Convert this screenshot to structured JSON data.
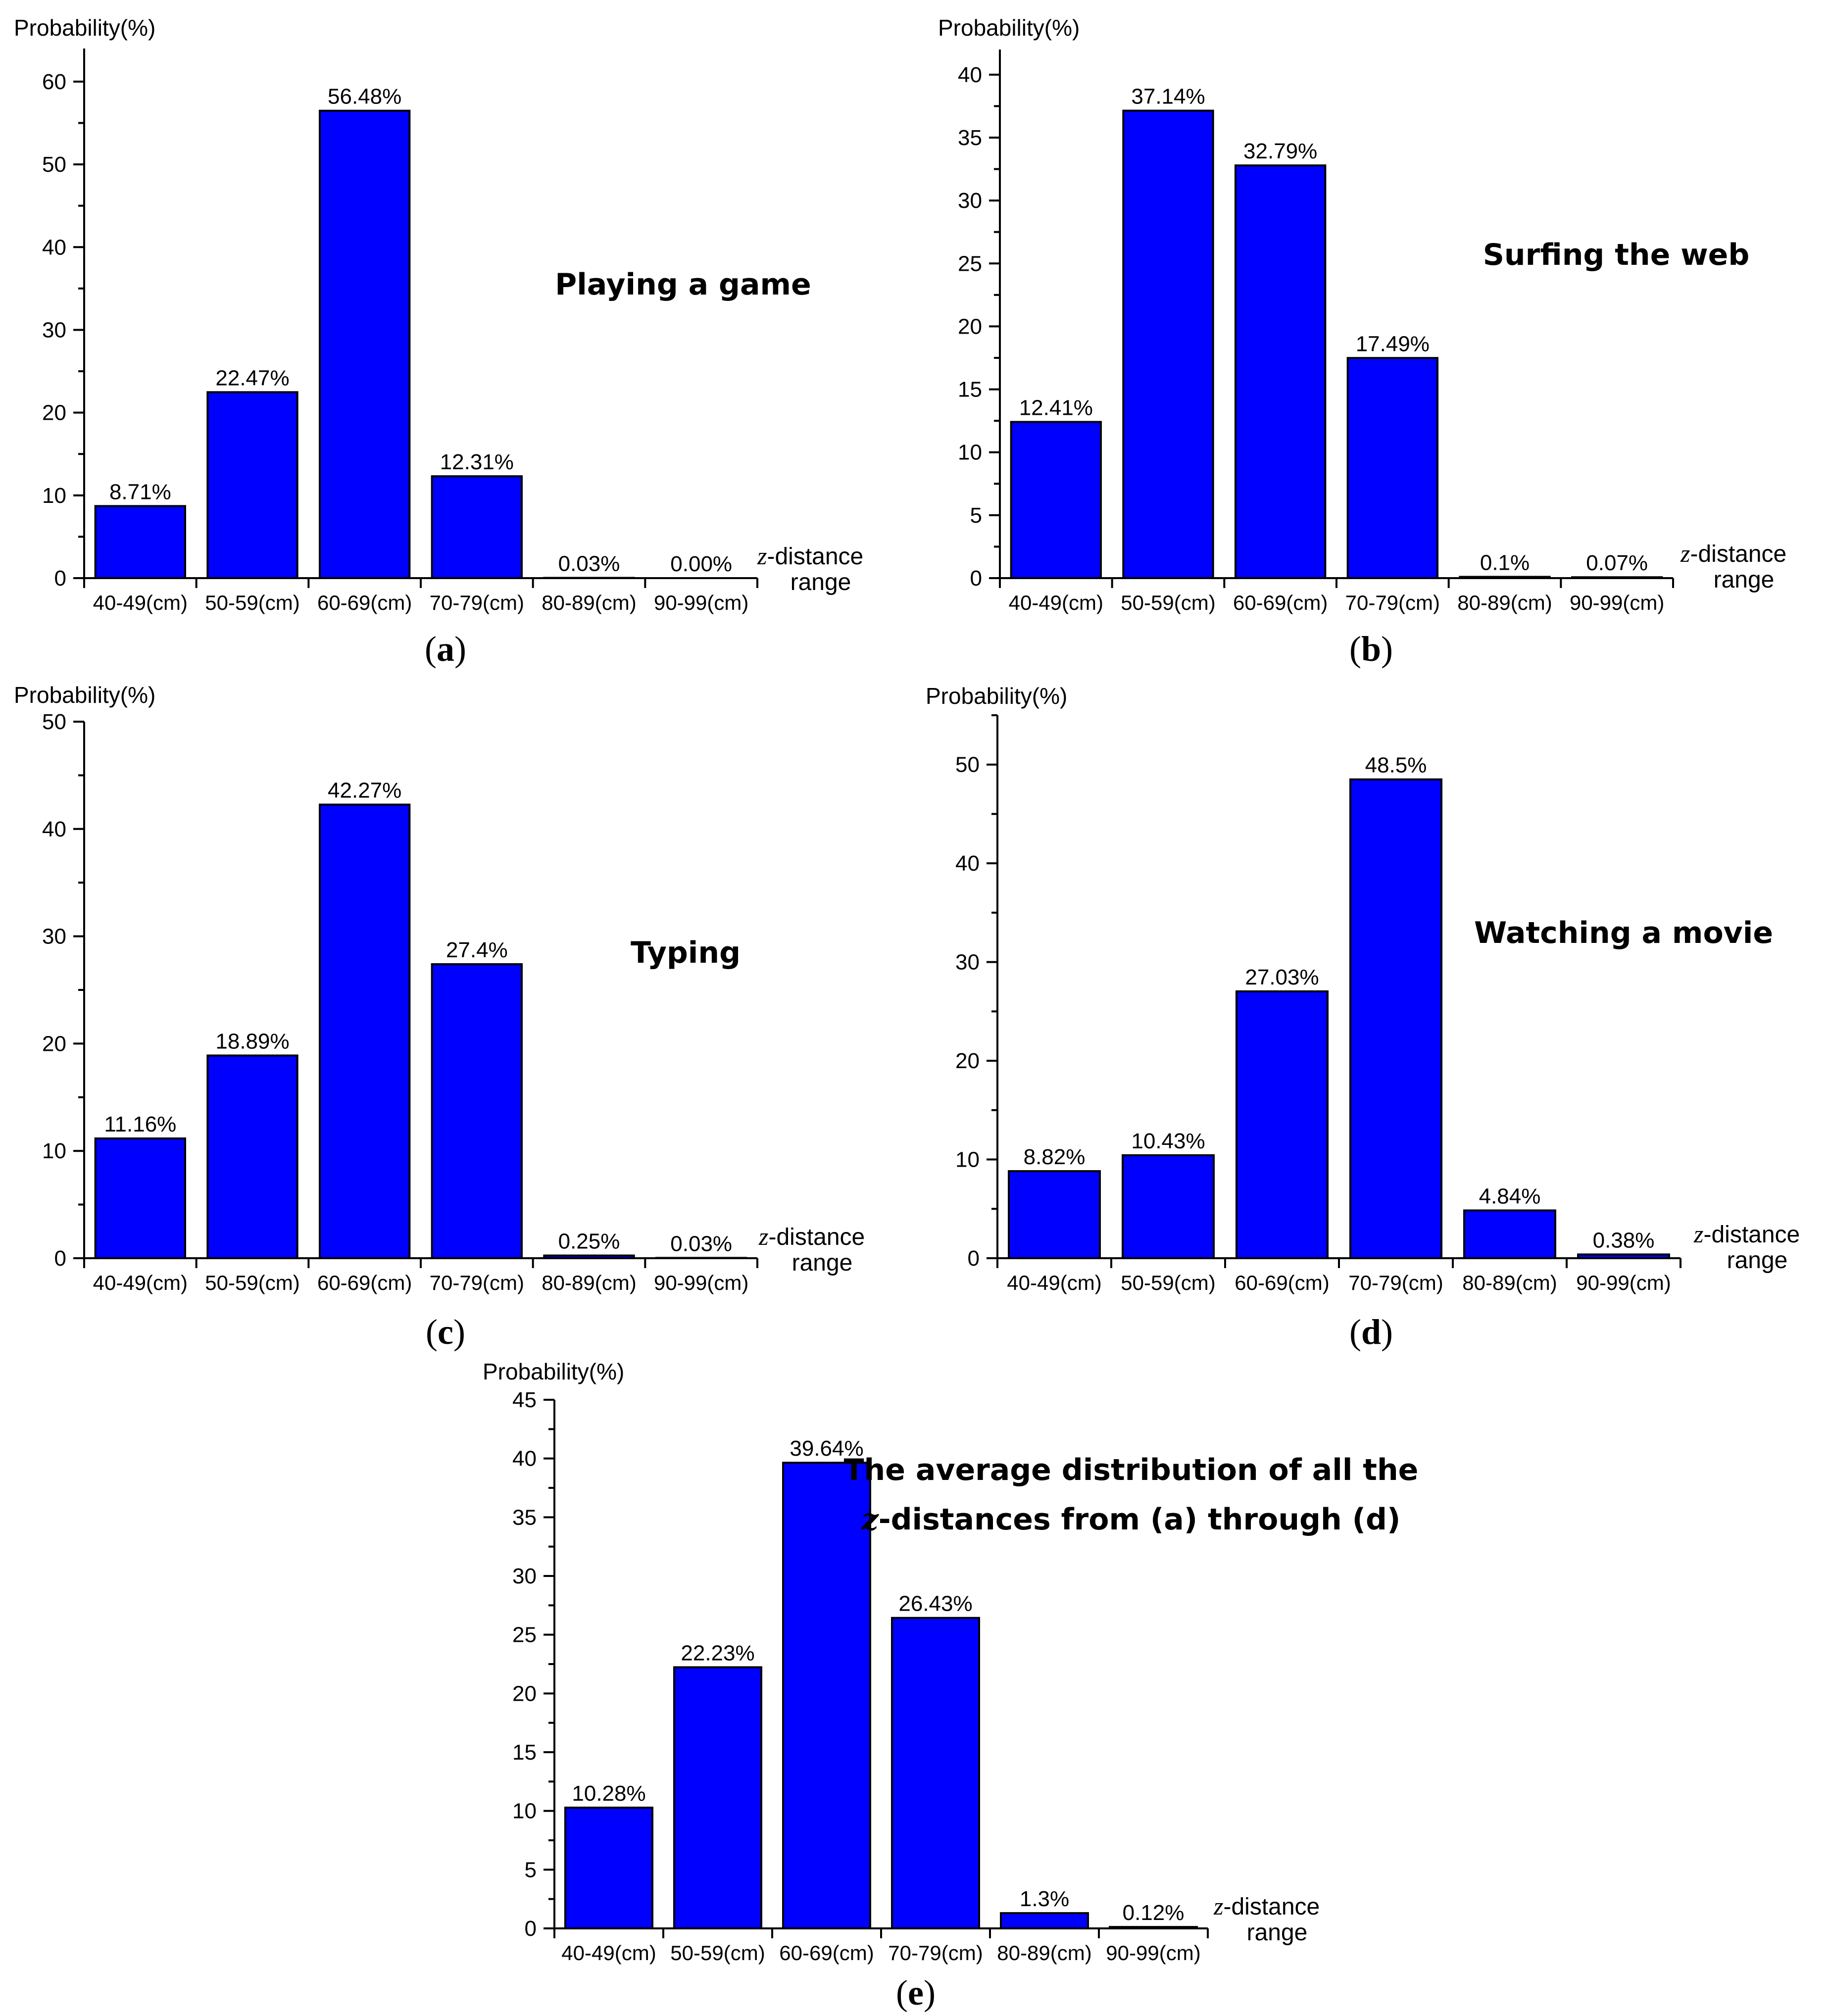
{
  "style": {
    "bar_color": "#0000FF",
    "axis_color": "#000000"
  },
  "chart_data": [
    {
      "type": "bar",
      "panel": "a",
      "title": "Playing a game",
      "ylabel": "Probability(%)",
      "xlabel_var": "z",
      "xlabel_line1": "-distance",
      "xlabel_line2": "range",
      "categories": [
        "40-49(cm)",
        "50-59(cm)",
        "60-69(cm)",
        "70-79(cm)",
        "80-89(cm)",
        "90-99(cm)"
      ],
      "values": [
        8.71,
        22.47,
        56.48,
        12.31,
        0.03,
        0.0
      ],
      "value_labels": [
        "8.71%",
        "22.47%",
        "56.48%",
        "12.31%",
        "0.03%",
        "0.00%"
      ],
      "ylim": [
        0,
        64
      ],
      "yticks": [
        0,
        10,
        20,
        30,
        40,
        50,
        60
      ],
      "grid": false
    },
    {
      "type": "bar",
      "panel": "b",
      "title": "Surfing the web",
      "ylabel": "Probability(%)",
      "xlabel_var": "z",
      "xlabel_line1": "-distance",
      "xlabel_line2": "range",
      "categories": [
        "40-49(cm)",
        "50-59(cm)",
        "60-69(cm)",
        "70-79(cm)",
        "80-89(cm)",
        "90-99(cm)"
      ],
      "values": [
        12.41,
        37.14,
        32.79,
        17.49,
        0.1,
        0.07
      ],
      "value_labels": [
        "12.41%",
        "37.14%",
        "32.79%",
        "17.49%",
        "0.1%",
        "0.07%"
      ],
      "ylim": [
        0,
        42
      ],
      "yticks": [
        0,
        5,
        10,
        15,
        20,
        25,
        30,
        35,
        40
      ],
      "grid": false
    },
    {
      "type": "bar",
      "panel": "c",
      "title": "Typing",
      "ylabel": "Probability(%)",
      "xlabel_var": "z",
      "xlabel_line1": "-distance",
      "xlabel_line2": "range",
      "categories": [
        "40-49(cm)",
        "50-59(cm)",
        "60-69(cm)",
        "70-79(cm)",
        "80-89(cm)",
        "90-99(cm)"
      ],
      "values": [
        11.16,
        18.89,
        42.27,
        27.4,
        0.25,
        0.03
      ],
      "value_labels": [
        "11.16%",
        "18.89%",
        "42.27%",
        "27.4%",
        "0.25%",
        "0.03%"
      ],
      "ylim": [
        0,
        50
      ],
      "yticks": [
        0,
        10,
        20,
        30,
        40,
        50
      ],
      "grid": false
    },
    {
      "type": "bar",
      "panel": "d",
      "title": "Watching a movie",
      "ylabel": "Probability(%)",
      "xlabel_var": "z",
      "xlabel_line1": "-distance",
      "xlabel_line2": "range",
      "categories": [
        "40-49(cm)",
        "50-59(cm)",
        "60-69(cm)",
        "70-79(cm)",
        "80-89(cm)",
        "90-99(cm)"
      ],
      "values": [
        8.82,
        10.43,
        27.03,
        48.5,
        4.84,
        0.38
      ],
      "value_labels": [
        "8.82%",
        "10.43%",
        "27.03%",
        "48.5%",
        "4.84%",
        "0.38%"
      ],
      "ylim": [
        0,
        55
      ],
      "yticks": [
        0,
        10,
        20,
        30,
        40,
        50
      ],
      "grid": false
    },
    {
      "type": "bar",
      "panel": "e",
      "title": "The average distribution of all the",
      "title_line2_var": "z",
      "title_line2": "-distances from (a) through (d)",
      "ylabel": "Probability(%)",
      "xlabel_var": "z",
      "xlabel_line1": "-distance",
      "xlabel_line2": "range",
      "categories": [
        "40-49(cm)",
        "50-59(cm)",
        "60-69(cm)",
        "70-79(cm)",
        "80-89(cm)",
        "90-99(cm)"
      ],
      "values": [
        10.28,
        22.23,
        39.64,
        26.43,
        1.3,
        0.12
      ],
      "value_labels": [
        "10.28%",
        "22.23%",
        "39.64%",
        "26.43%",
        "1.3%",
        "0.12%"
      ],
      "ylim": [
        0,
        45
      ],
      "yticks": [
        0,
        5,
        10,
        15,
        20,
        25,
        30,
        35,
        40,
        45
      ],
      "grid": false
    }
  ]
}
